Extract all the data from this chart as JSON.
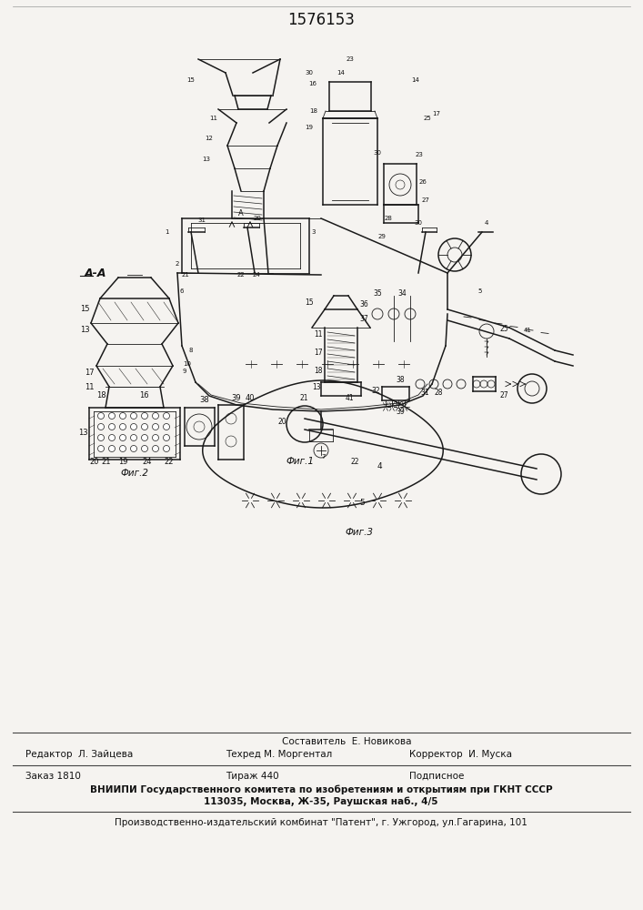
{
  "patent_number": "1576153",
  "background_color": "#f5f3f0",
  "line_color": "#1a1a1a",
  "text_color": "#111111",
  "fig1_caption": "Фиг.1",
  "fig2_caption": "Фиг.2",
  "fig3_caption": "Фиг.3",
  "fig2_label": "А-А",
  "footer_line0_col2": "Составитель  Е. Новикова",
  "footer_line1_col1": "Редактор  Л. Зайцева",
  "footer_line1_col2": "Техред М. Моргентал",
  "footer_line1_col3": "Корректор  И. Муска",
  "footer_line2_col1": "Заказ 1810",
  "footer_line2_col2": "Тираж 440",
  "footer_line2_col3": "Подписное",
  "footer_line3": "ВНИИПИ Государственного комитета по изобретениям и открытиям при ГКНТ СССР",
  "footer_line4": "113035, Москва, Ж-35, Раушская наб., 4/5",
  "footer_line5": "Производственно-издательский комбинат \"Патент\", г. Ужгород, ул.Гагарина, 101"
}
